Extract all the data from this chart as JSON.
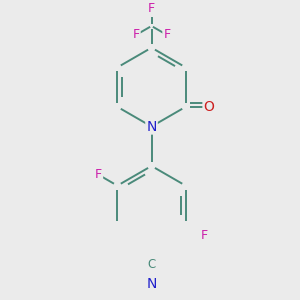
{
  "background_color": "#ebebeb",
  "bond_color": "#4a8a7a",
  "line_width": 1.4,
  "dbo": 0.055,
  "atom_colors": {
    "N": "#2020cc",
    "O": "#cc2020",
    "F": "#cc20aa",
    "C": "#4a8a7a"
  },
  "font_size": 8.5,
  "fig_size": [
    3.0,
    3.0
  ],
  "dpi": 100,
  "scale": 0.52
}
